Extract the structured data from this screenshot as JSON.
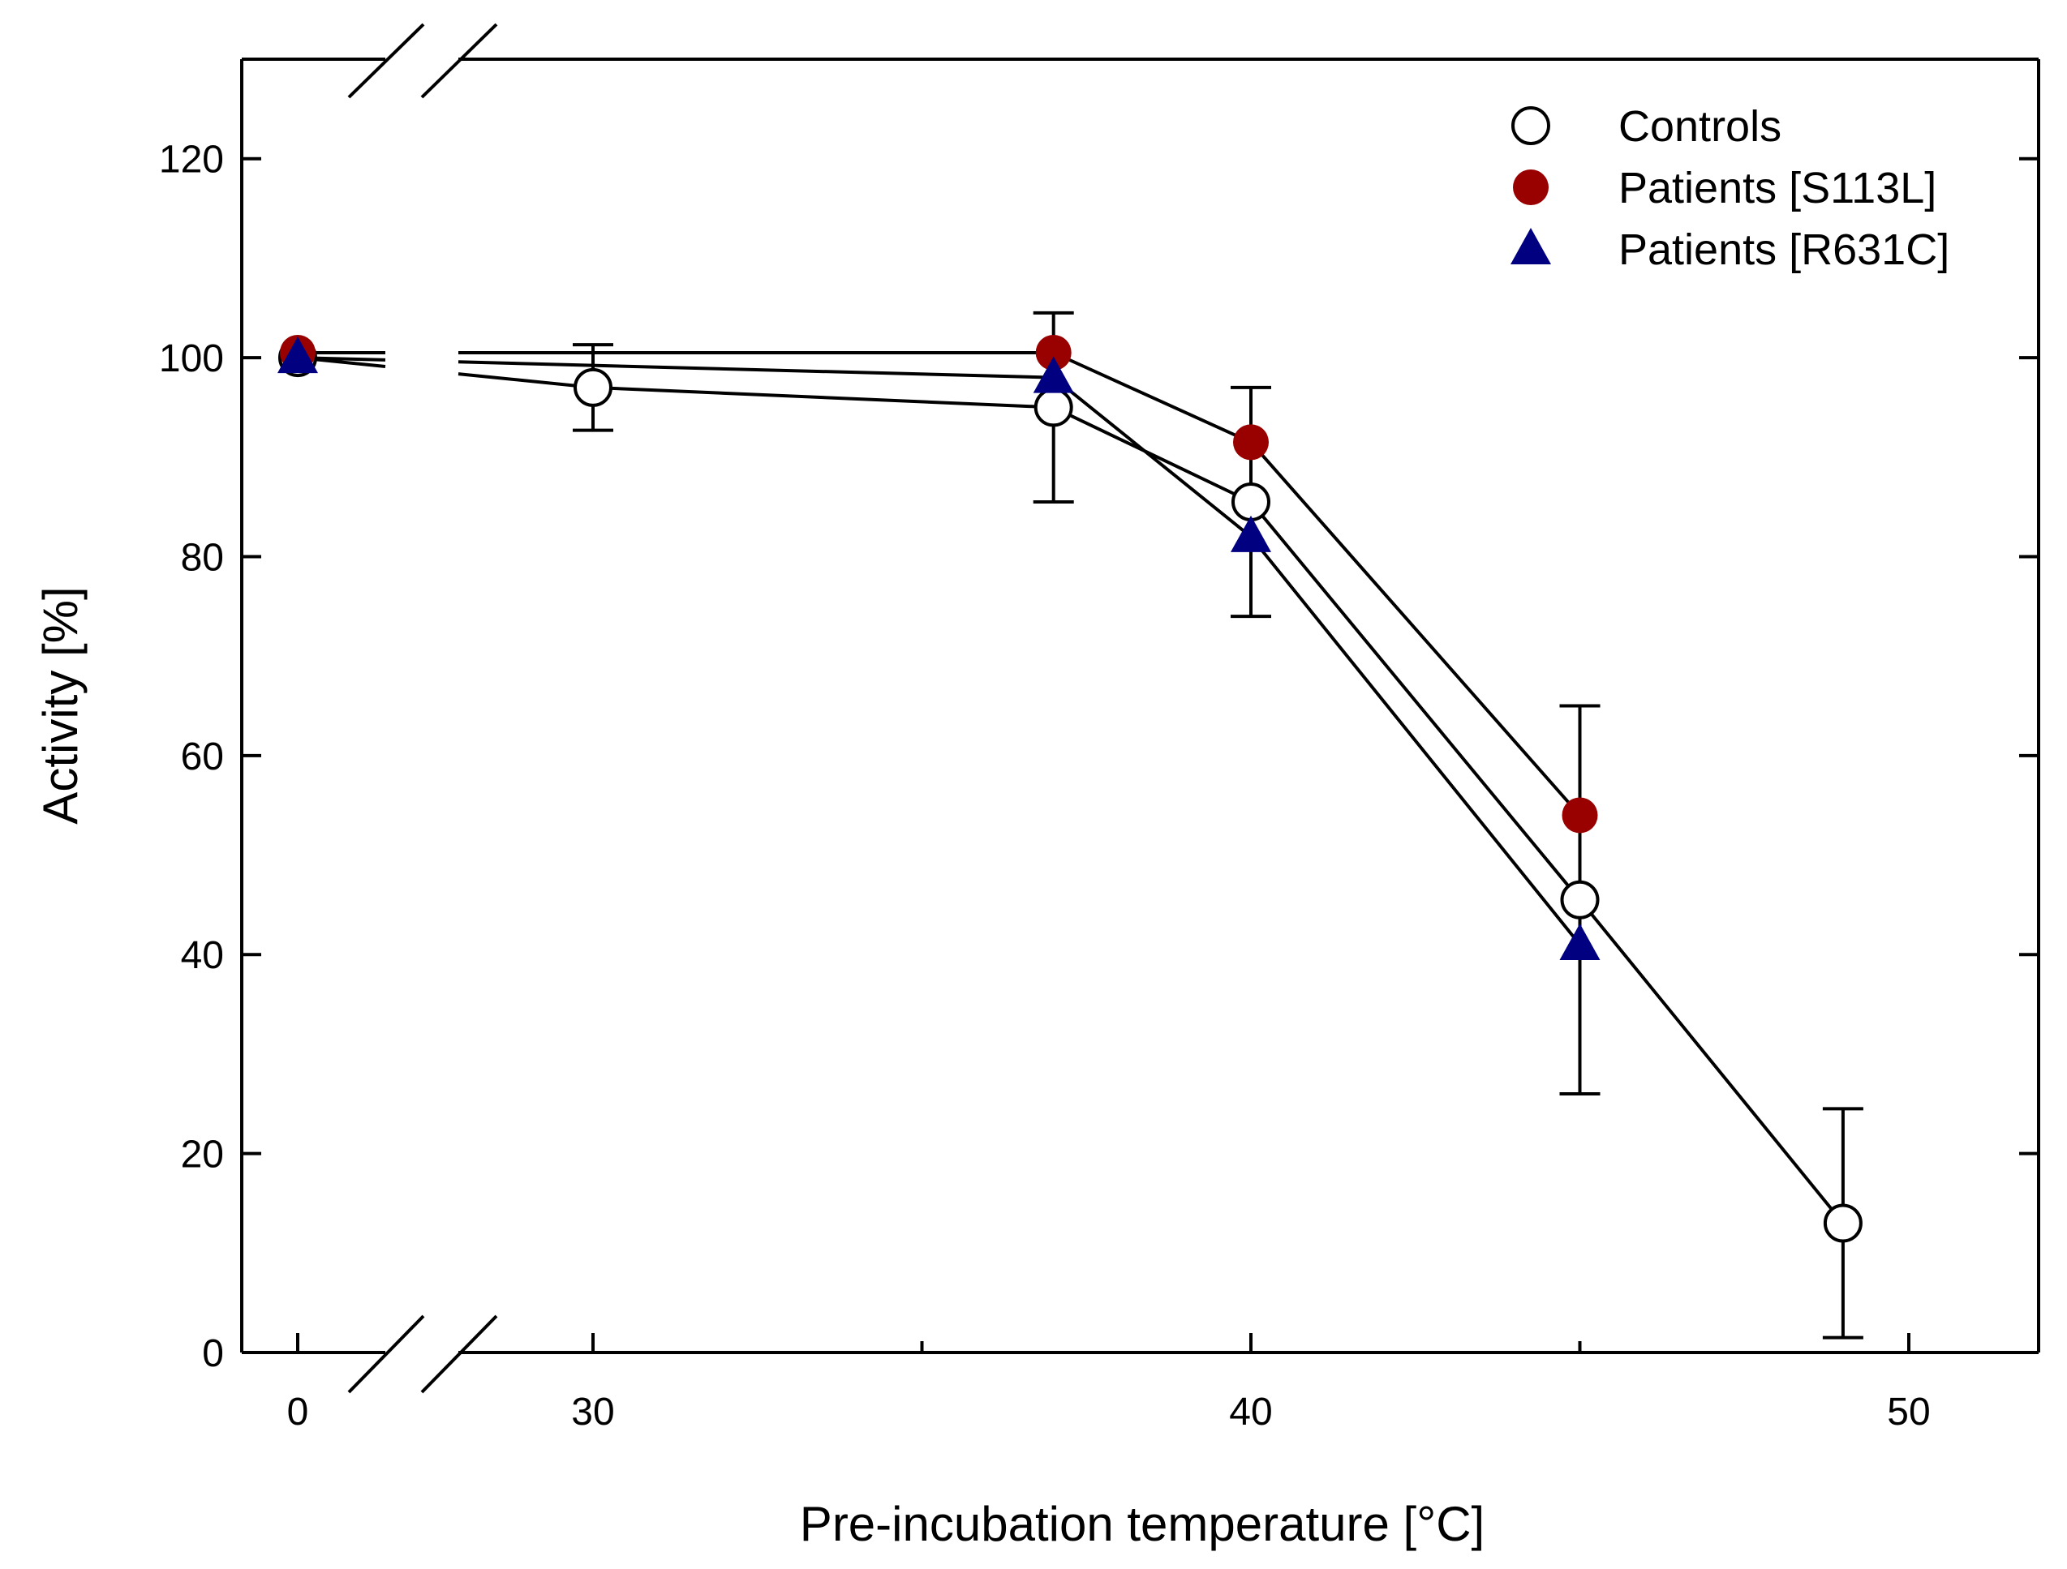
{
  "chart_data": {
    "type": "line",
    "title": "",
    "xlabel": "Pre-incubation temperature [°C]",
    "ylabel": "Activity [%]",
    "x_axis": {
      "break": true,
      "ticks": [
        0,
        30,
        40,
        50
      ],
      "minor_ticks": [
        35,
        45
      ]
    },
    "ylim": [
      0,
      130
    ],
    "y_ticks": [
      0,
      20,
      40,
      60,
      80,
      100,
      120
    ],
    "legend_position": "top-right",
    "series": [
      {
        "name": "Controls",
        "marker": "open-circle",
        "color": "#ffffff",
        "points": [
          {
            "x": 0,
            "y": 100
          },
          {
            "x": 30,
            "y": 97,
            "err": 4.3
          },
          {
            "x": 37,
            "y": 95,
            "err": 9.5
          },
          {
            "x": 40,
            "y": 85.5,
            "err": 11.5
          },
          {
            "x": 45,
            "y": 45.5,
            "err": 19.5
          },
          {
            "x": 49,
            "y": 13,
            "err": 11.5
          }
        ]
      },
      {
        "name": "Patients [S113L]",
        "marker": "filled-circle",
        "color": "#990000",
        "points": [
          {
            "x": 0,
            "y": 100.5
          },
          {
            "x": 37,
            "y": 100.5
          },
          {
            "x": 40,
            "y": 91.5
          },
          {
            "x": 45,
            "y": 54
          }
        ]
      },
      {
        "name": "Patients [R631C]",
        "marker": "filled-triangle",
        "color": "#000080",
        "points": [
          {
            "x": 0,
            "y": 100
          },
          {
            "x": 37,
            "y": 98
          },
          {
            "x": 40,
            "y": 82
          },
          {
            "x": 45,
            "y": 41
          }
        ]
      }
    ]
  }
}
